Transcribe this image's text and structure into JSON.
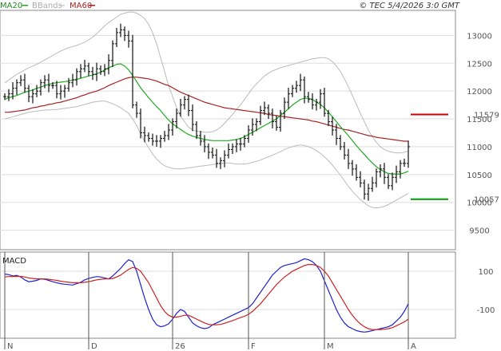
{
  "legend": {
    "ma20": {
      "label": "MA20",
      "color": "#22aa22"
    },
    "bbands": {
      "label": "BBands",
      "color": "#bbbbbb"
    },
    "ma60": {
      "label": "MA60",
      "color": "#aa2222"
    }
  },
  "copyright": "© TEC 5/4/2026 3:0 GMT",
  "macd_label": "MACD",
  "chart_data": [
    {
      "type": "candlestick",
      "title": "",
      "y_ticks": [
        9500,
        10000,
        10500,
        11000,
        11500,
        12000,
        12500,
        13000
      ],
      "ylim": [
        9150,
        13450
      ],
      "x_ticks": [
        {
          "label": "N",
          "index": 0
        },
        {
          "label": "D",
          "index": 21
        },
        {
          "label": "26",
          "index": 42
        },
        {
          "label": "F",
          "index": 61
        },
        {
          "label": "M",
          "index": 80
        },
        {
          "label": "A",
          "index": 101
        }
      ],
      "levels": [
        {
          "value": 11579,
          "label": "11579",
          "color": "#cc0000"
        },
        {
          "value": 10057,
          "label": "10057",
          "color": "#009900"
        }
      ],
      "price": [
        11900,
        11950,
        12050,
        12150,
        12200,
        12050,
        11900,
        11950,
        12000,
        12150,
        12200,
        12100,
        12100,
        11950,
        12000,
        12050,
        12150,
        12200,
        12350,
        12400,
        12450,
        12350,
        12300,
        12400,
        12350,
        12400,
        12550,
        12850,
        13050,
        13100,
        13000,
        12900,
        11750,
        11600,
        11250,
        11200,
        11150,
        11100,
        11100,
        11150,
        11200,
        11300,
        11450,
        11600,
        11750,
        11850,
        11650,
        11400,
        11200,
        11100,
        11000,
        10900,
        10850,
        10700,
        10750,
        10850,
        10950,
        11000,
        11050,
        11050,
        11150,
        11300,
        11400,
        11450,
        11650,
        11700,
        11600,
        11450,
        11350,
        11600,
        11800,
        11950,
        12050,
        12100,
        12200,
        11900,
        11850,
        11750,
        11800,
        11950,
        11600,
        11450,
        11300,
        11150,
        11000,
        10850,
        10700,
        10600,
        10450,
        10350,
        10150,
        10250,
        10350,
        10550,
        10600,
        10450,
        10300,
        10450,
        10550,
        10700,
        10700,
        11000
      ],
      "ma20": [
        11850,
        11880,
        11900,
        11920,
        11950,
        11980,
        12000,
        12020,
        12050,
        12070,
        12100,
        12120,
        12140,
        12150,
        12160,
        12170,
        12180,
        12200,
        12210,
        12230,
        12250,
        12270,
        12290,
        12310,
        12340,
        12380,
        12420,
        12450,
        12480,
        12490,
        12450,
        12380,
        12280,
        12170,
        12060,
        11970,
        11880,
        11800,
        11720,
        11650,
        11560,
        11480,
        11410,
        11360,
        11310,
        11260,
        11220,
        11190,
        11170,
        11150,
        11130,
        11120,
        11110,
        11110,
        11110,
        11110,
        11110,
        11120,
        11130,
        11150,
        11180,
        11220,
        11260,
        11300,
        11340,
        11380,
        11420,
        11460,
        11500,
        11560,
        11620,
        11680,
        11750,
        11800,
        11850,
        11870,
        11870,
        11850,
        11800,
        11760,
        11700,
        11620,
        11540,
        11450,
        11360,
        11280,
        11200,
        11110,
        11020,
        10940,
        10860,
        10780,
        10710,
        10640,
        10590,
        10550,
        10520,
        10510,
        10510,
        10510,
        10530,
        10560
      ],
      "ma60": [
        11620,
        11620,
        11630,
        11640,
        11650,
        11660,
        11680,
        11700,
        11710,
        11730,
        11740,
        11760,
        11770,
        11790,
        11800,
        11820,
        11840,
        11860,
        11880,
        11910,
        11930,
        11960,
        11980,
        12000,
        12030,
        12060,
        12100,
        12130,
        12160,
        12190,
        12220,
        12240,
        12250,
        12250,
        12240,
        12230,
        12220,
        12200,
        12180,
        12150,
        12120,
        12100,
        12060,
        12020,
        11980,
        11950,
        11920,
        11890,
        11860,
        11830,
        11800,
        11780,
        11760,
        11740,
        11720,
        11700,
        11690,
        11680,
        11670,
        11660,
        11650,
        11640,
        11630,
        11620,
        11610,
        11600,
        11580,
        11570,
        11560,
        11550,
        11540,
        11530,
        11520,
        11510,
        11500,
        11490,
        11480,
        11460,
        11450,
        11430,
        11410,
        11390,
        11370,
        11350,
        11330,
        11310,
        11300,
        11280,
        11260,
        11240,
        11220,
        11200,
        11190,
        11170,
        11160,
        11150,
        11140,
        11130,
        11120,
        11110,
        11100,
        11100
      ],
      "bb_upper": [
        12150,
        12200,
        12250,
        12300,
        12340,
        12380,
        12420,
        12450,
        12480,
        12520,
        12560,
        12600,
        12640,
        12680,
        12720,
        12750,
        12780,
        12800,
        12820,
        12850,
        12880,
        12920,
        12970,
        13030,
        13100,
        13170,
        13230,
        13280,
        13330,
        13380,
        13400,
        13420,
        13420,
        13400,
        13360,
        13300,
        13200,
        13050,
        12850,
        12600,
        12350,
        12100,
        11900,
        11700,
        11550,
        11450,
        11350,
        11300,
        11280,
        11270,
        11260,
        11260,
        11270,
        11300,
        11350,
        11420,
        11500,
        11580,
        11670,
        11750,
        11850,
        11950,
        12050,
        12130,
        12200,
        12270,
        12320,
        12360,
        12390,
        12420,
        12440,
        12460,
        12480,
        12500,
        12520,
        12540,
        12560,
        12580,
        12590,
        12600,
        12600,
        12580,
        12530,
        12450,
        12350,
        12220,
        12080,
        11920,
        11760,
        11600,
        11450,
        11300,
        11180,
        11080,
        11000,
        10950,
        10920,
        10900,
        10890,
        10890,
        10900,
        10920
      ],
      "bb_lower": [
        11500,
        11520,
        11540,
        11560,
        11580,
        11600,
        11620,
        11630,
        11640,
        11650,
        11660,
        11660,
        11670,
        11670,
        11680,
        11690,
        11700,
        11710,
        11720,
        11740,
        11760,
        11780,
        11800,
        11810,
        11820,
        11820,
        11800,
        11770,
        11740,
        11700,
        11650,
        11600,
        11500,
        11380,
        11230,
        11100,
        10980,
        10870,
        10780,
        10710,
        10660,
        10630,
        10610,
        10600,
        10600,
        10610,
        10620,
        10630,
        10640,
        10650,
        10660,
        10670,
        10680,
        10690,
        10700,
        10710,
        10710,
        10700,
        10690,
        10690,
        10690,
        10700,
        10720,
        10740,
        10760,
        10790,
        10820,
        10850,
        10880,
        10910,
        10950,
        10980,
        11000,
        11020,
        11030,
        11020,
        11000,
        10970,
        10930,
        10880,
        10820,
        10750,
        10670,
        10580,
        10490,
        10390,
        10290,
        10200,
        10120,
        10050,
        9990,
        9940,
        9910,
        9900,
        9910,
        9930,
        9960,
        10000,
        10040,
        10080,
        10120,
        10160
      ]
    },
    {
      "type": "line",
      "title": "MACD",
      "y_ticks": [
        100,
        -100
      ],
      "ylim": [
        -250,
        200
      ],
      "series": [
        {
          "name": "",
          "color": "#2222cc",
          "values": [
            85,
            82,
            75,
            78,
            70,
            55,
            45,
            48,
            52,
            60,
            58,
            52,
            45,
            40,
            35,
            32,
            30,
            28,
            35,
            42,
            55,
            62,
            68,
            72,
            70,
            65,
            60,
            75,
            95,
            115,
            140,
            160,
            150,
            100,
            30,
            -40,
            -100,
            -150,
            -180,
            -190,
            -185,
            -175,
            -150,
            -120,
            -100,
            -110,
            -140,
            -170,
            -185,
            -195,
            -200,
            -195,
            -180,
            -170,
            -160,
            -150,
            -140,
            -130,
            -120,
            -110,
            -100,
            -90,
            -70,
            -40,
            -10,
            20,
            50,
            80,
            100,
            120,
            130,
            135,
            140,
            145,
            155,
            165,
            160,
            150,
            130,
            100,
            50,
            0,
            -50,
            -100,
            -140,
            -170,
            -190,
            -200,
            -210,
            -215,
            -218,
            -215,
            -210,
            -205,
            -200,
            -195,
            -190,
            -180,
            -160,
            -140,
            -110,
            -70
          ]
        },
        {
          "name": "",
          "color": "#cc2222",
          "values": [
            70,
            72,
            72,
            73,
            73,
            70,
            65,
            62,
            60,
            60,
            60,
            58,
            55,
            52,
            48,
            45,
            42,
            40,
            40,
            40,
            42,
            45,
            50,
            55,
            58,
            60,
            60,
            62,
            70,
            80,
            95,
            110,
            120,
            115,
            100,
            70,
            40,
            0,
            -40,
            -80,
            -110,
            -130,
            -140,
            -140,
            -135,
            -130,
            -130,
            -140,
            -150,
            -160,
            -170,
            -178,
            -180,
            -180,
            -178,
            -172,
            -165,
            -158,
            -150,
            -142,
            -135,
            -125,
            -110,
            -90,
            -70,
            -45,
            -20,
            5,
            30,
            50,
            70,
            85,
            100,
            110,
            120,
            130,
            135,
            135,
            130,
            120,
            100,
            75,
            40,
            5,
            -30,
            -65,
            -100,
            -130,
            -155,
            -175,
            -190,
            -200,
            -205,
            -205,
            -205,
            -203,
            -200,
            -195,
            -185,
            -175,
            -165,
            -150
          ]
        }
      ]
    }
  ]
}
